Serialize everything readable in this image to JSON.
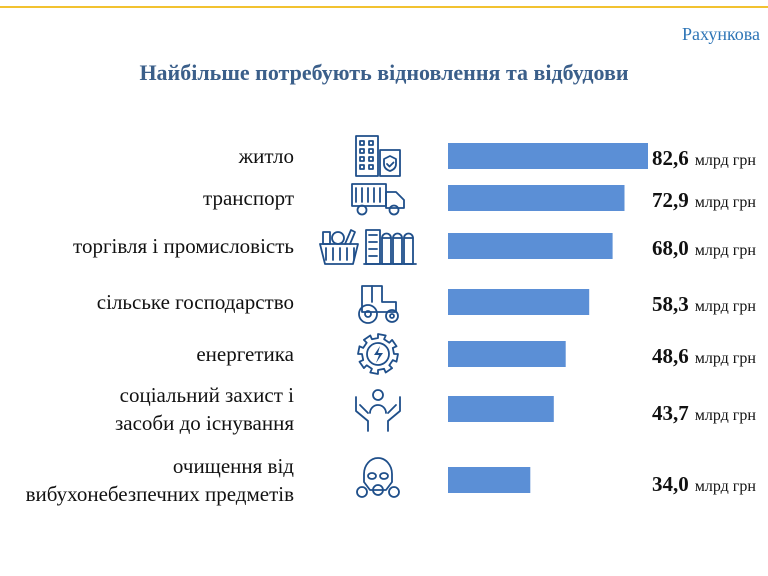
{
  "header": {
    "tag": "Рахункова"
  },
  "chart_data": {
    "type": "bar",
    "orientation": "horizontal",
    "title": "Найбільше потребують відновлення та відбудови",
    "unit": "млрд грн",
    "categories": [
      [
        "житло"
      ],
      [
        "транспорт"
      ],
      [
        "торгівля і промисловість"
      ],
      [
        "сільське господарство"
      ],
      [
        "енергетика"
      ],
      [
        "соціальний захист і",
        "засоби до існування"
      ],
      [
        "очищення від",
        "вибухонебезпечних предметів"
      ]
    ],
    "values": [
      82.6,
      72.9,
      68.0,
      58.3,
      48.6,
      43.7,
      34.0
    ],
    "value_labels": [
      "82,6",
      "72,9",
      "68,0",
      "58,3",
      "48,6",
      "43,7",
      "34,0"
    ],
    "icons": [
      "building-icon",
      "truck-icon",
      "grocery-factory-icon",
      "tractor-icon",
      "energy-gear-icon",
      "care-hands-icon",
      "gas-mask-icon"
    ],
    "bar_color": "#5b8fd6",
    "grid": false,
    "legend": "none"
  },
  "colors": {
    "title": "#3b5f8a",
    "header": "#2e75b6",
    "accent_line": "#f2c230",
    "icon": "#1f4f8a"
  }
}
